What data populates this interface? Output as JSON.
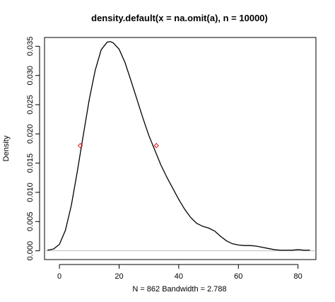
{
  "chart_data": {
    "type": "line",
    "title": "density.default(x = na.omit(a), n = 10000)",
    "xlabel": "N = 862   Bandwidth = 2.788",
    "ylabel": "Density",
    "xlim": [
      -5,
      86
    ],
    "ylim": [
      -0.0015,
      0.0365
    ],
    "x_ticks": [
      "0",
      "20",
      "40",
      "60",
      "80"
    ],
    "y_ticks": [
      "0.000",
      "0.005",
      "0.010",
      "0.015",
      "0.020",
      "0.025",
      "0.030",
      "0.035"
    ],
    "x_tick_values": [
      0,
      20,
      40,
      60,
      80
    ],
    "y_tick_values": [
      0,
      0.005,
      0.01,
      0.015,
      0.02,
      0.025,
      0.03,
      0.035
    ],
    "grid": false,
    "baseline": 0,
    "series": [
      {
        "color": "#000000",
        "x": [
          -4,
          -2,
          0,
          2,
          4,
          6,
          8,
          10,
          12,
          14,
          16,
          17,
          18,
          20,
          22,
          24,
          26,
          28,
          30,
          32,
          34,
          36,
          38,
          40,
          42,
          44,
          46,
          48,
          50,
          52,
          54,
          56,
          58,
          60,
          62,
          64,
          66,
          68,
          70,
          72,
          74,
          76,
          78,
          80,
          82,
          84
        ],
        "y": [
          0.0001,
          0.0003,
          0.0011,
          0.0035,
          0.0078,
          0.0136,
          0.0198,
          0.0259,
          0.0309,
          0.0344,
          0.0357,
          0.0358,
          0.0356,
          0.0345,
          0.0322,
          0.0291,
          0.0259,
          0.0227,
          0.0197,
          0.0172,
          0.0147,
          0.0126,
          0.0107,
          0.0088,
          0.0071,
          0.0057,
          0.0047,
          0.0042,
          0.0039,
          0.0034,
          0.0025,
          0.0017,
          0.0012,
          0.001,
          0.0009,
          0.0009,
          0.0008,
          0.0006,
          0.0004,
          0.0002,
          0.0001,
          0.0001,
          0.0001,
          0.0002,
          0.0001,
          0.0001
        ]
      }
    ],
    "markers": [
      {
        "x": 7,
        "y": 0.018,
        "color": "#e31a1c"
      },
      {
        "x": 32.5,
        "y": 0.018,
        "color": "#e31a1c"
      }
    ]
  }
}
